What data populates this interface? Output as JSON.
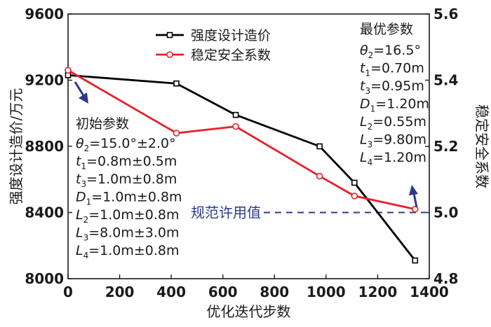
{
  "chart_data": {
    "type": "line",
    "title": "",
    "xlabel": "优化迭代步数",
    "ylabel_left": "强度设计造价/万元",
    "ylabel_right": "稳定安全系数",
    "xlim": [
      0,
      1400
    ],
    "ylim_left": [
      8000,
      9600
    ],
    "ylim_right": [
      4.8,
      5.6
    ],
    "x_ticks": [
      "0",
      "200",
      "400",
      "600",
      "800",
      "1000",
      "1200",
      "1400"
    ],
    "y_ticks_left": [
      "8000",
      "8400",
      "8800",
      "9200",
      "9600"
    ],
    "y_ticks_right": [
      "4.8",
      "5.0",
      "5.2",
      "5.4",
      "5.6"
    ],
    "grid": false,
    "legend_position": "top-center",
    "series": [
      {
        "name": "强度设计造价",
        "axis": "left",
        "color": "#000000",
        "marker": "square",
        "x": [
          0,
          420,
          650,
          975,
          1110,
          1345
        ],
        "y": [
          9230,
          9180,
          8990,
          8800,
          8580,
          8110
        ]
      },
      {
        "name": "稳定安全系数",
        "axis": "right",
        "color": "#e8202a",
        "marker": "circle",
        "x": [
          0,
          420,
          650,
          975,
          1110,
          1345
        ],
        "y": [
          5.43,
          5.24,
          5.26,
          5.11,
          5.05,
          5.01
        ]
      }
    ],
    "reference_line": {
      "label": "规范许用值",
      "axis": "right",
      "value": 5.0,
      "color": "#2b3a8c"
    },
    "arrow_color": "#2b3a8c",
    "annotations": {
      "initial": {
        "title": "初始参数",
        "lines": [
          {
            "sym": "θ",
            "sub": "2",
            "val": "=15.0°±2.0°"
          },
          {
            "sym": "t",
            "sub": "1",
            "val": "=0.8m±0.5m"
          },
          {
            "sym": "t",
            "sub": "3",
            "val": "=1.0m±0.8m"
          },
          {
            "sym": "D",
            "sub": "1",
            "val": "=1.0m±0.8m"
          },
          {
            "sym": "L",
            "sub": "2",
            "val": "=1.0m±0.8m"
          },
          {
            "sym": "L",
            "sub": "3",
            "val": "=8.0m±3.0m"
          },
          {
            "sym": "L",
            "sub": "4",
            "val": "=1.0m±0.8m"
          }
        ]
      },
      "optimal": {
        "title": "最优参数",
        "lines": [
          {
            "sym": "θ",
            "sub": "2",
            "val": "=16.5°"
          },
          {
            "sym": "t",
            "sub": "1",
            "val": "=0.70m"
          },
          {
            "sym": "t",
            "sub": "3",
            "val": "=0.95m"
          },
          {
            "sym": "D",
            "sub": "1",
            "val": "=1.20m"
          },
          {
            "sym": "L",
            "sub": "2",
            "val": "=0.55m"
          },
          {
            "sym": "L",
            "sub": "3",
            "val": "=9.80m"
          },
          {
            "sym": "L",
            "sub": "4",
            "val": "=1.20m"
          }
        ]
      }
    }
  }
}
